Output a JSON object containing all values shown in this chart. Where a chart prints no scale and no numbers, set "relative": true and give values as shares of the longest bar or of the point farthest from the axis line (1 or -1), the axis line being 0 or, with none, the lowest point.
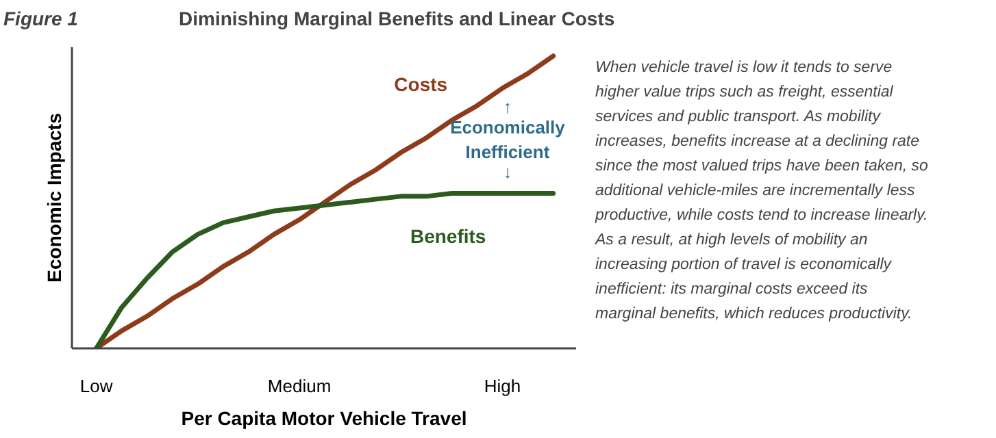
{
  "chart_data": {
    "type": "line",
    "relative": true,
    "title": "Diminishing Marginal Benefits and Linear Costs",
    "xlabel": "Per Capita Motor Vehicle Travel",
    "ylabel": "Economic Impacts",
    "categories": [
      "Low",
      null,
      null,
      null,
      null,
      null,
      null,
      null,
      "Medium",
      null,
      null,
      null,
      null,
      null,
      null,
      null,
      "High",
      null,
      null
    ],
    "grid": false,
    "marker": "none",
    "line_style": "solid",
    "series": [
      {
        "name": "Costs",
        "color": "#8e3b1b",
        "values": [
          0,
          0.06,
          0.11,
          0.17,
          0.22,
          0.28,
          0.33,
          0.39,
          0.44,
          0.5,
          0.56,
          0.61,
          0.67,
          0.72,
          0.78,
          0.83,
          0.89,
          0.94,
          1
        ]
      },
      {
        "name": "Benefits",
        "color": "#2d5a1e",
        "values": [
          0,
          0.14,
          0.24,
          0.33,
          0.39,
          0.43,
          0.45,
          0.47,
          0.48,
          0.49,
          0.5,
          0.51,
          0.52,
          0.52,
          0.53,
          0.53,
          0.53,
          0.53,
          0.53
        ]
      }
    ],
    "annotations": [
      "Figure 1",
      "↑",
      "Economically Inefficient",
      "↓",
      "When vehicle travel is low it tends to serve higher value trips such as freight, essential services and public transport. As mobility increases, benefits increase at a declining rate since the most valued trips have been taken, so additional vehicle-miles are incrementally less productive, while costs tend to increase linearly. As a result, at high levels of mobility an increasing portion of travel is economically inefficient: its marginal costs exceed its marginal benefits, which reduces productivity."
    ]
  }
}
